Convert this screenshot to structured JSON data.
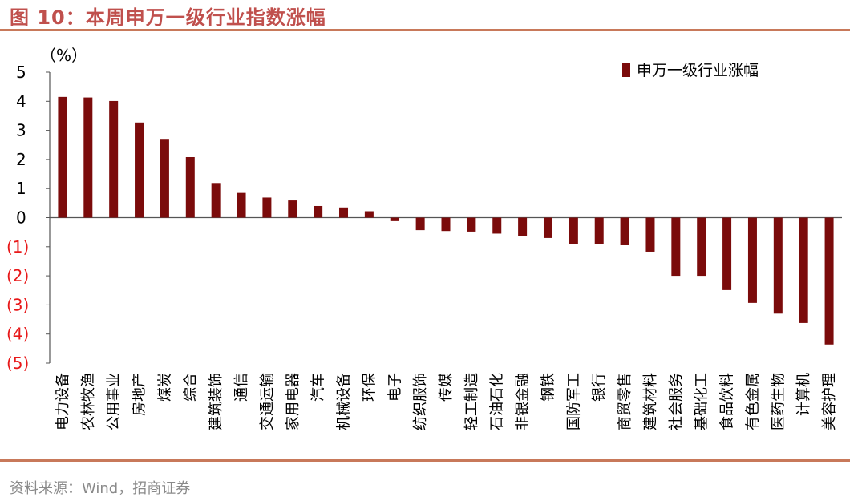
{
  "figure": {
    "title": "图 10：本周申万一级行业指数涨幅",
    "source": "资料来源：Wind，招商证券"
  },
  "chart_data": {
    "type": "bar",
    "unit_label": "（%）",
    "series_name": "申万一级行业涨幅",
    "bar_color": "#7b0b0b",
    "negative_tick_color": "#e8191a",
    "ylim": [
      -5,
      5
    ],
    "yticks": [
      5,
      4,
      3,
      2,
      1,
      0,
      -1,
      -2,
      -3,
      -4,
      -5
    ],
    "ytick_labels": [
      "5",
      "4",
      "3",
      "2",
      "1",
      "0",
      "(1)",
      "(2)",
      "(3)",
      "(4)",
      "(5)"
    ],
    "categories": [
      "电力设备",
      "农林牧渔",
      "公用事业",
      "房地产",
      "煤炭",
      "综合",
      "建筑装饰",
      "通信",
      "交通运输",
      "家用电器",
      "汽车",
      "机械设备",
      "环保",
      "电子",
      "纺织服饰",
      "传媒",
      "轻工制造",
      "石油石化",
      "非银金融",
      "钢铁",
      "国防军工",
      "银行",
      "商贸零售",
      "建筑材料",
      "社会服务",
      "基础化工",
      "食品饮料",
      "有色金属",
      "医药生物",
      "计算机",
      "美容护理"
    ],
    "values": [
      4.15,
      4.13,
      4.01,
      3.27,
      2.68,
      2.08,
      1.19,
      0.85,
      0.69,
      0.59,
      0.4,
      0.35,
      0.22,
      -0.12,
      -0.43,
      -0.46,
      -0.48,
      -0.55,
      -0.64,
      -0.7,
      -0.9,
      -0.91,
      -0.95,
      -1.17,
      -2.0,
      -2.0,
      -2.49,
      -2.93,
      -3.3,
      -3.62,
      -4.36
    ]
  }
}
